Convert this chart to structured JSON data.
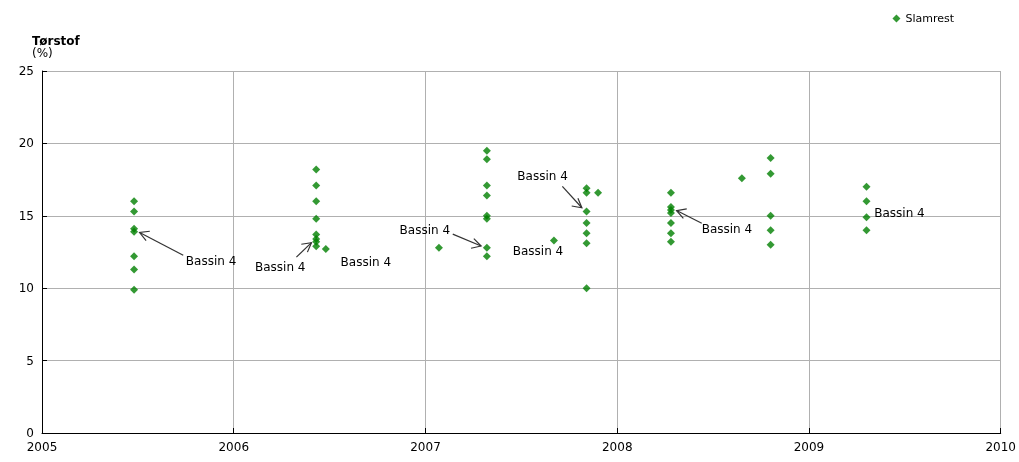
{
  "chart_data": {
    "type": "scatter",
    "ylabel": "Tørstof\n(%)",
    "xlim": [
      2005,
      2010
    ],
    "xticks": [
      2005,
      2006,
      2007,
      2008,
      2009,
      2010
    ],
    "ylim": [
      0,
      25
    ],
    "yticks": [
      0,
      5,
      10,
      15,
      20,
      25
    ],
    "grid": true,
    "legend": "top right",
    "marker": "diamond",
    "series": [
      {
        "name": "Slamrest",
        "color": "#008000",
        "x": [
          2005.48,
          2005.48,
          2005.48,
          2005.48,
          2005.48,
          2005.48,
          2005.48,
          2006.43,
          2006.43,
          2006.43,
          2006.43,
          2006.43,
          2006.43,
          2006.43,
          2006.43,
          2006.48,
          2007.07,
          2007.32,
          2007.32,
          2007.32,
          2007.32,
          2007.32,
          2007.32,
          2007.32,
          2007.32,
          2007.67,
          2007.84,
          2007.84,
          2007.84,
          2007.84,
          2007.84,
          2007.84,
          2007.84,
          2007.9,
          2008.28,
          2008.28,
          2008.28,
          2008.28,
          2008.28,
          2008.28,
          2008.28,
          2008.65,
          2008.8,
          2008.8,
          2008.8,
          2008.8,
          2008.8,
          2009.3,
          2009.3,
          2009.3,
          2009.3
        ],
        "values": [
          16.0,
          15.3,
          14.1,
          13.9,
          12.2,
          11.3,
          9.9,
          18.2,
          17.1,
          16.0,
          14.8,
          13.7,
          13.4,
          13.2,
          12.9,
          12.7,
          12.8,
          19.5,
          18.9,
          17.1,
          16.4,
          15.0,
          14.8,
          12.8,
          12.2,
          13.3,
          16.9,
          16.6,
          15.3,
          14.5,
          13.8,
          13.1,
          10.0,
          16.6,
          16.6,
          15.6,
          15.4,
          15.2,
          14.5,
          13.8,
          13.2,
          17.6,
          19.0,
          17.9,
          15.0,
          14.0,
          13.0,
          17.0,
          16.0,
          14.9,
          14.0
        ]
      }
    ],
    "annotations": [
      {
        "text": "Bassin 4",
        "x": 2005.48,
        "y": 14.0
      },
      {
        "text": "Bassin 4",
        "x": 2006.43,
        "y": 13.4
      },
      {
        "text": "Bassin 4",
        "x": 2006.48,
        "y": 12.7
      },
      {
        "text": "Bassin 4",
        "x": 2007.32,
        "y": 12.8
      },
      {
        "text": "Bassin 4",
        "x": 2007.67,
        "y": 13.3
      },
      {
        "text": "Bassin 4",
        "x": 2007.84,
        "y": 15.3
      },
      {
        "text": "Bassin 4",
        "x": 2008.28,
        "y": 15.5
      },
      {
        "text": "Bassin 4",
        "x": 2009.3,
        "y": 15.0
      }
    ]
  }
}
